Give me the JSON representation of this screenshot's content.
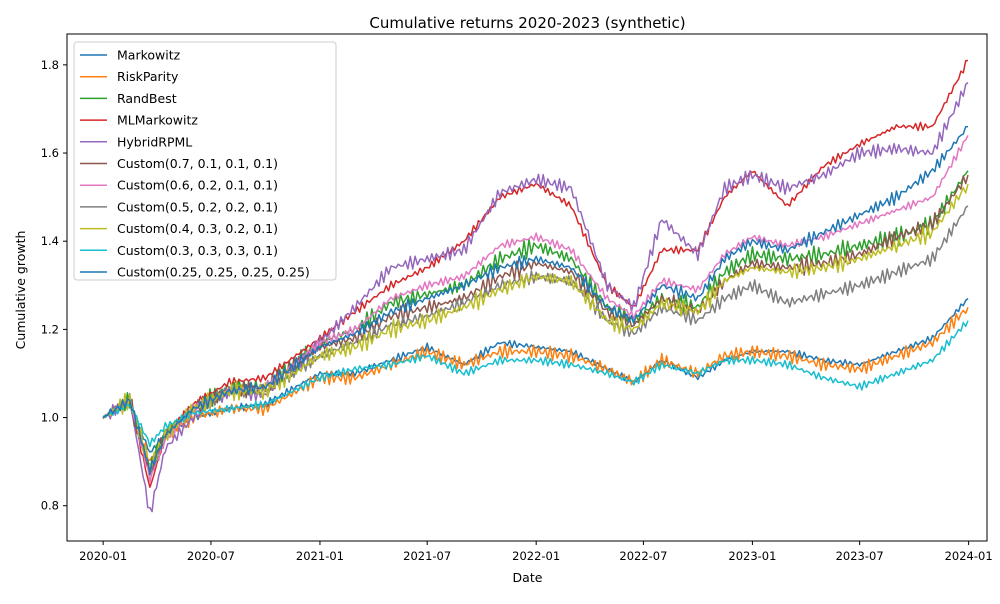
{
  "chart_data": {
    "type": "line",
    "title": "Cumulative returns 2020-2023 (synthetic)",
    "xlabel": "Date",
    "ylabel": "Cumulative growth",
    "xlim": [
      "2019-11-01",
      "2024-02-01"
    ],
    "ylim": [
      0.72,
      1.87
    ],
    "xticks": [
      "2020-01",
      "2020-07",
      "2021-01",
      "2021-07",
      "2022-01",
      "2022-07",
      "2023-01",
      "2023-07",
      "2024-01"
    ],
    "yticks": [
      0.8,
      1.0,
      1.2,
      1.4,
      1.6,
      1.8
    ],
    "grid": false,
    "legend_position": "upper-left",
    "series": [
      {
        "name": "Markowitz",
        "color": "#1f77b4",
        "x": [
          "2020-01-01",
          "2020-02-15",
          "2020-03-20",
          "2020-04-15",
          "2020-06-01",
          "2020-08-01",
          "2020-10-01",
          "2021-01-01",
          "2021-03-01",
          "2021-05-01",
          "2021-07-01",
          "2021-09-01",
          "2021-11-01",
          "2022-01-01",
          "2022-03-01",
          "2022-05-01",
          "2022-06-15",
          "2022-08-01",
          "2022-10-01",
          "2022-11-15",
          "2023-01-01",
          "2023-03-01",
          "2023-05-01",
          "2023-07-01",
          "2023-09-01",
          "2023-11-01",
          "2023-12-31"
        ],
        "y": [
          1.0,
          1.03,
          0.92,
          0.96,
          1.0,
          1.02,
          1.03,
          1.1,
          1.1,
          1.13,
          1.16,
          1.12,
          1.17,
          1.16,
          1.15,
          1.11,
          1.08,
          1.13,
          1.09,
          1.13,
          1.15,
          1.15,
          1.13,
          1.12,
          1.15,
          1.18,
          1.27
        ]
      },
      {
        "name": "RiskParity",
        "color": "#ff7f0e",
        "x": [
          "2020-01-01",
          "2020-02-15",
          "2020-03-20",
          "2020-04-15",
          "2020-06-01",
          "2020-08-01",
          "2020-10-01",
          "2021-01-01",
          "2021-03-01",
          "2021-05-01",
          "2021-07-01",
          "2021-09-01",
          "2021-11-01",
          "2022-01-01",
          "2022-03-01",
          "2022-05-01",
          "2022-06-15",
          "2022-08-01",
          "2022-10-01",
          "2022-11-15",
          "2023-01-01",
          "2023-03-01",
          "2023-05-01",
          "2023-07-01",
          "2023-09-01",
          "2023-11-01",
          "2023-12-31"
        ],
        "y": [
          1.0,
          1.03,
          0.9,
          0.96,
          1.0,
          1.02,
          1.02,
          1.09,
          1.09,
          1.12,
          1.15,
          1.12,
          1.15,
          1.15,
          1.14,
          1.11,
          1.08,
          1.13,
          1.1,
          1.14,
          1.15,
          1.14,
          1.12,
          1.11,
          1.14,
          1.17,
          1.25
        ]
      },
      {
        "name": "RandBest",
        "color": "#2ca02c",
        "x": [
          "2020-01-01",
          "2020-02-15",
          "2020-03-20",
          "2020-04-15",
          "2020-06-01",
          "2020-08-01",
          "2020-10-01",
          "2021-01-01",
          "2021-03-01",
          "2021-05-01",
          "2021-07-01",
          "2021-09-01",
          "2021-11-01",
          "2022-01-01",
          "2022-03-01",
          "2022-05-01",
          "2022-06-15",
          "2022-08-01",
          "2022-10-01",
          "2022-11-15",
          "2023-01-01",
          "2023-03-01",
          "2023-05-01",
          "2023-07-01",
          "2023-09-01",
          "2023-11-01",
          "2023-12-31"
        ],
        "y": [
          1.0,
          1.04,
          0.88,
          0.97,
          1.02,
          1.07,
          1.07,
          1.17,
          1.2,
          1.26,
          1.28,
          1.3,
          1.36,
          1.39,
          1.36,
          1.25,
          1.22,
          1.27,
          1.25,
          1.33,
          1.37,
          1.36,
          1.37,
          1.39,
          1.41,
          1.44,
          1.56
        ]
      },
      {
        "name": "MLMarkowitz",
        "color": "#d62728",
        "x": [
          "2020-01-01",
          "2020-02-15",
          "2020-03-20",
          "2020-04-15",
          "2020-06-01",
          "2020-08-01",
          "2020-10-01",
          "2021-01-01",
          "2021-03-01",
          "2021-05-01",
          "2021-07-01",
          "2021-09-01",
          "2021-11-01",
          "2022-01-01",
          "2022-03-01",
          "2022-05-01",
          "2022-06-15",
          "2022-08-01",
          "2022-10-01",
          "2022-11-15",
          "2023-01-01",
          "2023-03-01",
          "2023-05-01",
          "2023-07-01",
          "2023-09-01",
          "2023-11-01",
          "2023-12-31"
        ],
        "y": [
          1.0,
          1.04,
          0.84,
          0.96,
          1.03,
          1.08,
          1.09,
          1.18,
          1.24,
          1.3,
          1.34,
          1.4,
          1.5,
          1.53,
          1.48,
          1.3,
          1.25,
          1.38,
          1.38,
          1.5,
          1.56,
          1.48,
          1.57,
          1.62,
          1.66,
          1.66,
          1.81
        ]
      },
      {
        "name": "HybridRPML",
        "color": "#9467bd",
        "x": [
          "2020-01-01",
          "2020-02-15",
          "2020-03-20",
          "2020-04-15",
          "2020-06-01",
          "2020-08-01",
          "2020-10-01",
          "2021-01-01",
          "2021-03-01",
          "2021-05-01",
          "2021-07-01",
          "2021-09-01",
          "2021-11-01",
          "2022-01-01",
          "2022-03-01",
          "2022-05-01",
          "2022-06-15",
          "2022-08-01",
          "2022-10-01",
          "2022-11-15",
          "2023-01-01",
          "2023-03-01",
          "2023-05-01",
          "2023-07-01",
          "2023-09-01",
          "2023-11-01",
          "2023-12-31"
        ],
        "y": [
          1.0,
          1.04,
          0.78,
          0.93,
          1.0,
          1.06,
          1.05,
          1.17,
          1.25,
          1.34,
          1.36,
          1.38,
          1.51,
          1.54,
          1.52,
          1.3,
          1.25,
          1.45,
          1.37,
          1.52,
          1.55,
          1.52,
          1.55,
          1.6,
          1.61,
          1.6,
          1.76
        ]
      },
      {
        "name": "Custom(0.7, 0.1, 0.1, 0.1)",
        "color": "#8c564b",
        "x": [
          "2020-01-01",
          "2020-02-15",
          "2020-03-20",
          "2020-04-15",
          "2020-06-01",
          "2020-08-01",
          "2020-10-01",
          "2021-01-01",
          "2021-03-01",
          "2021-05-01",
          "2021-07-01",
          "2021-09-01",
          "2021-11-01",
          "2022-01-01",
          "2022-03-01",
          "2022-05-01",
          "2022-06-15",
          "2022-08-01",
          "2022-10-01",
          "2022-11-15",
          "2023-01-01",
          "2023-03-01",
          "2023-05-01",
          "2023-07-01",
          "2023-09-01",
          "2023-11-01",
          "2023-12-31"
        ],
        "y": [
          1.0,
          1.04,
          0.87,
          0.96,
          1.02,
          1.06,
          1.07,
          1.16,
          1.18,
          1.23,
          1.25,
          1.27,
          1.32,
          1.35,
          1.33,
          1.24,
          1.21,
          1.27,
          1.24,
          1.31,
          1.35,
          1.34,
          1.35,
          1.37,
          1.41,
          1.44,
          1.55
        ]
      },
      {
        "name": "Custom(0.6, 0.2, 0.1, 0.1)",
        "color": "#e377c2",
        "x": [
          "2020-01-01",
          "2020-02-15",
          "2020-03-20",
          "2020-04-15",
          "2020-06-01",
          "2020-08-01",
          "2020-10-01",
          "2021-01-01",
          "2021-03-01",
          "2021-05-01",
          "2021-07-01",
          "2021-09-01",
          "2021-11-01",
          "2022-01-01",
          "2022-03-01",
          "2022-05-01",
          "2022-06-15",
          "2022-08-01",
          "2022-10-01",
          "2022-11-15",
          "2023-01-01",
          "2023-03-01",
          "2023-05-01",
          "2023-07-01",
          "2023-09-01",
          "2023-11-01",
          "2023-12-31"
        ],
        "y": [
          1.0,
          1.04,
          0.86,
          0.95,
          1.02,
          1.06,
          1.07,
          1.17,
          1.2,
          1.27,
          1.3,
          1.32,
          1.39,
          1.41,
          1.38,
          1.27,
          1.23,
          1.31,
          1.29,
          1.37,
          1.41,
          1.39,
          1.41,
          1.44,
          1.47,
          1.5,
          1.64
        ]
      },
      {
        "name": "Custom(0.5, 0.2, 0.2, 0.1)",
        "color": "#7f7f7f",
        "x": [
          "2020-01-01",
          "2020-02-15",
          "2020-03-20",
          "2020-04-15",
          "2020-06-01",
          "2020-08-01",
          "2020-10-01",
          "2021-01-01",
          "2021-03-01",
          "2021-05-01",
          "2021-07-01",
          "2021-09-01",
          "2021-11-01",
          "2022-01-01",
          "2022-03-01",
          "2022-05-01",
          "2022-06-15",
          "2022-08-01",
          "2022-10-01",
          "2022-11-15",
          "2023-01-01",
          "2023-03-01",
          "2023-05-01",
          "2023-07-01",
          "2023-09-01",
          "2023-11-01",
          "2023-12-31"
        ],
        "y": [
          1.0,
          1.04,
          0.88,
          0.96,
          1.02,
          1.06,
          1.06,
          1.14,
          1.17,
          1.21,
          1.23,
          1.26,
          1.3,
          1.32,
          1.31,
          1.22,
          1.19,
          1.25,
          1.22,
          1.27,
          1.3,
          1.26,
          1.28,
          1.3,
          1.33,
          1.36,
          1.48
        ]
      },
      {
        "name": "Custom(0.4, 0.3, 0.2, 0.1)",
        "color": "#bcbd22",
        "x": [
          "2020-01-01",
          "2020-02-15",
          "2020-03-20",
          "2020-04-15",
          "2020-06-01",
          "2020-08-01",
          "2020-10-01",
          "2021-01-01",
          "2021-03-01",
          "2021-05-01",
          "2021-07-01",
          "2021-09-01",
          "2021-11-01",
          "2022-01-01",
          "2022-03-01",
          "2022-05-01",
          "2022-06-15",
          "2022-08-01",
          "2022-10-01",
          "2022-11-15",
          "2023-01-01",
          "2023-03-01",
          "2023-05-01",
          "2023-07-01",
          "2023-09-01",
          "2023-11-01",
          "2023-12-31"
        ],
        "y": [
          1.0,
          1.04,
          0.89,
          0.96,
          1.02,
          1.06,
          1.06,
          1.14,
          1.16,
          1.2,
          1.22,
          1.25,
          1.29,
          1.32,
          1.31,
          1.22,
          1.2,
          1.26,
          1.24,
          1.31,
          1.34,
          1.33,
          1.34,
          1.36,
          1.39,
          1.42,
          1.53
        ]
      },
      {
        "name": "Custom(0.3, 0.3, 0.3, 0.1)",
        "color": "#17becf",
        "x": [
          "2020-01-01",
          "2020-02-15",
          "2020-03-20",
          "2020-04-15",
          "2020-06-01",
          "2020-08-01",
          "2020-10-01",
          "2021-01-01",
          "2021-03-01",
          "2021-05-01",
          "2021-07-01",
          "2021-09-01",
          "2021-11-01",
          "2022-01-01",
          "2022-03-01",
          "2022-05-01",
          "2022-06-15",
          "2022-08-01",
          "2022-10-01",
          "2022-11-15",
          "2023-01-01",
          "2023-03-01",
          "2023-05-01",
          "2023-07-01",
          "2023-09-01",
          "2023-11-01",
          "2023-12-31"
        ],
        "y": [
          1.0,
          1.03,
          0.94,
          0.98,
          1.01,
          1.02,
          1.03,
          1.09,
          1.11,
          1.12,
          1.14,
          1.1,
          1.13,
          1.13,
          1.12,
          1.1,
          1.08,
          1.12,
          1.1,
          1.13,
          1.13,
          1.12,
          1.09,
          1.07,
          1.1,
          1.13,
          1.22
        ]
      },
      {
        "name": "Custom(0.25, 0.25, 0.25, 0.25)",
        "color": "#1f77b4",
        "x": [
          "2020-01-01",
          "2020-02-15",
          "2020-03-20",
          "2020-04-15",
          "2020-06-01",
          "2020-08-01",
          "2020-10-01",
          "2021-01-01",
          "2021-03-01",
          "2021-05-01",
          "2021-07-01",
          "2021-09-01",
          "2021-11-01",
          "2022-01-01",
          "2022-03-01",
          "2022-05-01",
          "2022-06-15",
          "2022-08-01",
          "2022-10-01",
          "2022-11-15",
          "2023-01-01",
          "2023-03-01",
          "2023-05-01",
          "2023-07-01",
          "2023-09-01",
          "2023-11-01",
          "2023-12-31"
        ],
        "y": [
          1.0,
          1.04,
          0.88,
          0.96,
          1.02,
          1.06,
          1.07,
          1.16,
          1.19,
          1.24,
          1.27,
          1.3,
          1.34,
          1.36,
          1.34,
          1.25,
          1.22,
          1.3,
          1.27,
          1.36,
          1.4,
          1.38,
          1.42,
          1.46,
          1.5,
          1.56,
          1.66
        ]
      }
    ]
  }
}
